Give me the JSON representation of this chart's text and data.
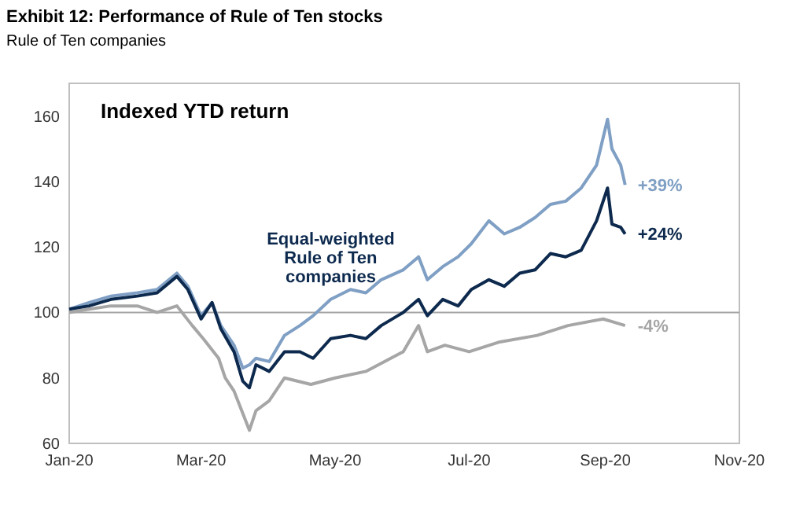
{
  "chart_data": {
    "type": "line",
    "title": "Exhibit 12: Performance of Rule of Ten stocks",
    "subtitle": "Rule of Ten companies",
    "annotations": [
      "Indexed YTD return",
      {
        "text": "+39%",
        "x": "2020-09-10",
        "y": 139
      },
      {
        "text": "+24%",
        "x": "2020-09-10",
        "y": 124
      },
      {
        "text": "-4%",
        "x": "2020-09-10",
        "y": 96
      }
    ],
    "xlim": [
      "2020-01-01",
      "2020-11-01"
    ],
    "xticks": [
      {
        "value": "2020-01-01",
        "label": "Jan-20"
      },
      {
        "value": "2020-03-01",
        "label": "Mar-20"
      },
      {
        "value": "2020-05-01",
        "label": "May-20"
      },
      {
        "value": "2020-07-01",
        "label": "Jul-20"
      },
      {
        "value": "2020-09-01",
        "label": "Sep-20"
      },
      {
        "value": "2020-11-01",
        "label": "Nov-20"
      }
    ],
    "ylim": [
      60,
      170
    ],
    "yticks": [
      60,
      80,
      100,
      120,
      140,
      160
    ],
    "grid": false,
    "marker": "none",
    "line_style": "solid",
    "ref_lines": [
      {
        "axis": "y",
        "value": 100,
        "label": null,
        "color": "#a6a6a6"
      }
    ],
    "series": [
      {
        "color": "#a6a6a6",
        "x": [
          "2020-01-01",
          "2020-01-10",
          "2020-01-20",
          "2020-02-01",
          "2020-02-10",
          "2020-02-19",
          "2020-02-26",
          "2020-03-02",
          "2020-03-09",
          "2020-03-12",
          "2020-03-16",
          "2020-03-23",
          "2020-03-26",
          "2020-04-01",
          "2020-04-08",
          "2020-04-20",
          "2020-05-01",
          "2020-05-15",
          "2020-06-01",
          "2020-06-08",
          "2020-06-12",
          "2020-06-20",
          "2020-07-01",
          "2020-07-15",
          "2020-08-01",
          "2020-08-15",
          "2020-08-31",
          "2020-09-05",
          "2020-09-10"
        ],
        "values": [
          100,
          101,
          102,
          102,
          100,
          102,
          96,
          92,
          86,
          80,
          76,
          64,
          70,
          73,
          80,
          78,
          80,
          82,
          88,
          96,
          88,
          90,
          88,
          91,
          93,
          96,
          98,
          97,
          96
        ]
      },
      {
        "color": "#7f9fc4",
        "x": [
          "2020-01-01",
          "2020-01-10",
          "2020-01-20",
          "2020-02-01",
          "2020-02-10",
          "2020-02-19",
          "2020-02-24",
          "2020-03-01",
          "2020-03-06",
          "2020-03-10",
          "2020-03-16",
          "2020-03-20",
          "2020-03-23",
          "2020-03-26",
          "2020-04-01",
          "2020-04-08",
          "2020-04-15",
          "2020-04-21",
          "2020-04-29",
          "2020-05-08",
          "2020-05-15",
          "2020-05-22",
          "2020-06-01",
          "2020-06-08",
          "2020-06-12",
          "2020-06-19",
          "2020-06-26",
          "2020-07-02",
          "2020-07-10",
          "2020-07-17",
          "2020-07-24",
          "2020-07-31",
          "2020-08-07",
          "2020-08-14",
          "2020-08-21",
          "2020-08-28",
          "2020-09-02",
          "2020-09-04",
          "2020-09-08",
          "2020-09-10"
        ],
        "values": [
          101,
          103,
          105,
          106,
          107,
          112,
          108,
          99,
          103,
          96,
          90,
          83,
          84,
          86,
          85,
          93,
          96,
          99,
          104,
          107,
          106,
          110,
          113,
          117,
          110,
          114,
          117,
          121,
          128,
          124,
          126,
          129,
          133,
          134,
          138,
          145,
          159,
          150,
          145,
          139
        ]
      },
      {
        "name": "Equal-weighted Rule of Ten companies",
        "color": "#0d2a4e",
        "x": [
          "2020-01-01",
          "2020-01-10",
          "2020-01-20",
          "2020-02-01",
          "2020-02-10",
          "2020-02-19",
          "2020-02-24",
          "2020-03-01",
          "2020-03-06",
          "2020-03-10",
          "2020-03-16",
          "2020-03-20",
          "2020-03-23",
          "2020-03-26",
          "2020-04-01",
          "2020-04-08",
          "2020-04-15",
          "2020-04-21",
          "2020-04-29",
          "2020-05-08",
          "2020-05-15",
          "2020-05-22",
          "2020-06-01",
          "2020-06-08",
          "2020-06-12",
          "2020-06-19",
          "2020-06-26",
          "2020-07-02",
          "2020-07-10",
          "2020-07-17",
          "2020-07-24",
          "2020-07-31",
          "2020-08-07",
          "2020-08-14",
          "2020-08-21",
          "2020-08-28",
          "2020-09-02",
          "2020-09-04",
          "2020-09-08",
          "2020-09-10"
        ],
        "values": [
          101,
          102,
          104,
          105,
          106,
          111,
          107,
          98,
          103,
          95,
          88,
          79,
          77,
          84,
          82,
          88,
          88,
          86,
          92,
          93,
          92,
          96,
          100,
          104,
          99,
          104,
          102,
          107,
          110,
          108,
          112,
          113,
          118,
          117,
          119,
          128,
          138,
          127,
          126,
          124
        ]
      }
    ]
  }
}
